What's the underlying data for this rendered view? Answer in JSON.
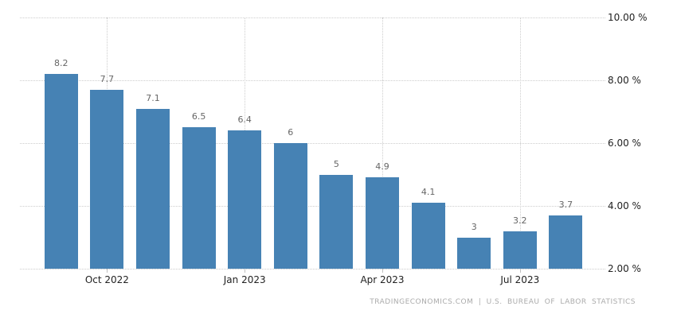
{
  "chart_data": {
    "type": "bar",
    "title": "",
    "xlabel": "",
    "ylabel": "",
    "values": [
      8.2,
      7.7,
      7.1,
      6.5,
      6.4,
      6,
      5,
      4.9,
      4.1,
      3,
      3.2,
      3.7
    ],
    "bar_labels": [
      "8.2",
      "7.7",
      "7.1",
      "6.5",
      "6.4",
      "6",
      "5",
      "4.9",
      "4.1",
      "3",
      "3.2",
      "3.7"
    ],
    "x_ticks": [
      {
        "label": "Oct 2022",
        "bar_index": 1
      },
      {
        "label": "Jan 2023",
        "bar_index": 4
      },
      {
        "label": "Apr 2023",
        "bar_index": 7
      },
      {
        "label": "Jul 2023",
        "bar_index": 10
      }
    ],
    "y_ticks": [
      {
        "label": "10.00 %",
        "value": 10
      },
      {
        "label": "8.00 %",
        "value": 8
      },
      {
        "label": "6.00 %",
        "value": 6
      },
      {
        "label": "4.00 %",
        "value": 4
      },
      {
        "label": "2.00 %",
        "value": 2
      }
    ],
    "ylim": [
      2,
      10
    ],
    "grid": "dotted",
    "legend_position": "none",
    "colors": {
      "bar": "#4682b4",
      "grid": "#cdcdcd",
      "bar_label": "#666666",
      "axis_label": "#222222",
      "attribution": "#ababab",
      "background": "#ffffff"
    }
  },
  "footer": {
    "attribution": "TRADINGECONOMICS.COM | U.S. BUREAU OF LABOR STATISTICS"
  }
}
